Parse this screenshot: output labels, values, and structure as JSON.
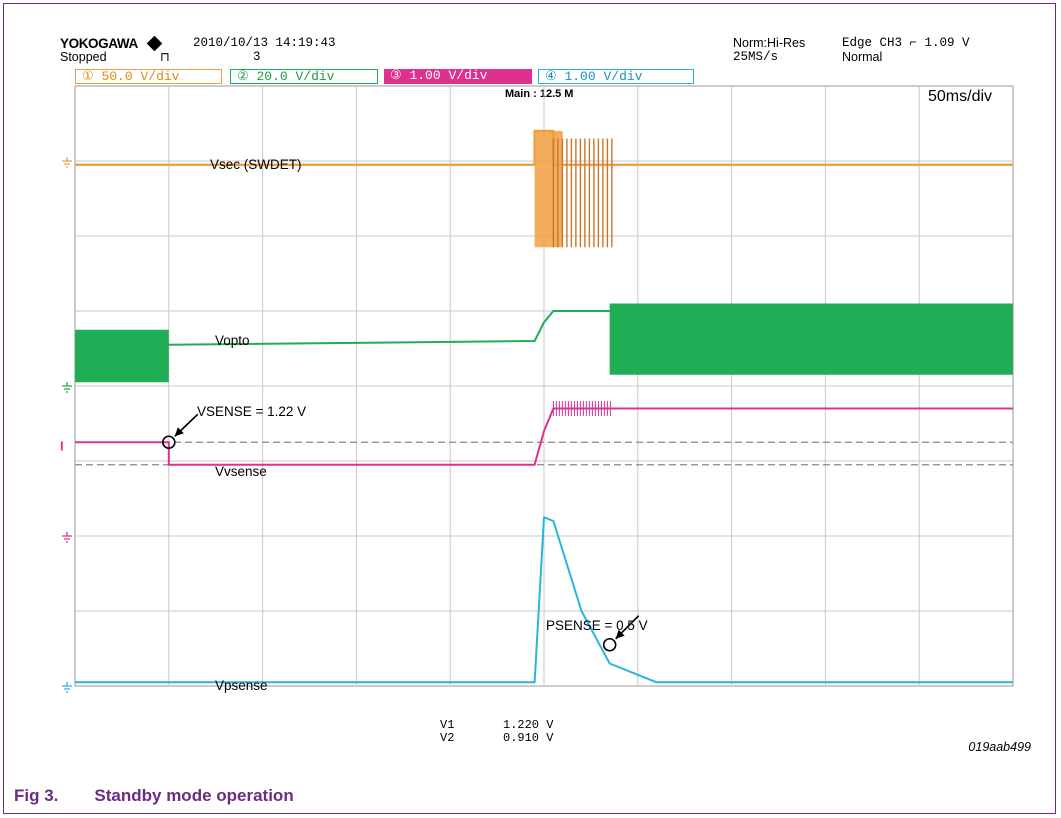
{
  "header": {
    "brand": "YOKOGAWA",
    "status": "Stopped",
    "datetime": "2010/10/13 14:19:43",
    "acq_count": "3",
    "acq_mode": "Norm:Hi-Res",
    "sample_rate": "25MS/s",
    "trigger": "Edge CH3 ⌐ 1.09 V",
    "trigger_mode": "Normal",
    "record_length": "Main : 12.5 M",
    "timebase": "50ms/div"
  },
  "channels": [
    {
      "label": "① 50.0 V/div",
      "color": "#f0a040",
      "text_color": "#e08a1a"
    },
    {
      "label": "② 20.0 V/div",
      "color": "#1fae55",
      "text_color": "#1a9a48"
    },
    {
      "label": "③ 1.00 V/div",
      "color": "#e0308f",
      "text_color": "#ffffff"
    },
    {
      "label": "④ 1.00 V/div",
      "color": "#2bb3e0",
      "text_color": "#1a8fc0"
    }
  ],
  "labels": {
    "vsec": "Vsec (SWDET)",
    "vopto": "Vopto",
    "vvsense": "Vvsense",
    "vpsense": "Vpsense"
  },
  "annotations": {
    "vsense": "VSENSE = 1.22 V",
    "psense": "PSENSE = 0.5 V"
  },
  "cursors": {
    "v1_label": "V1",
    "v1_value": "1.220 V",
    "v2_label": "V2",
    "v2_value": "0.910 V"
  },
  "figure_id": "019aab499",
  "caption": {
    "number": "Fig 3.",
    "title": "Standby mode operation"
  },
  "chart_data": {
    "type": "line",
    "x_unit": "ms",
    "x_range": [
      -250,
      250
    ],
    "y_unit": "div",
    "y_range": [
      -4,
      4
    ],
    "grid": true,
    "series": [
      {
        "name": "Vsec (SWDET)",
        "color": "#f0a040",
        "points": [
          [
            -250,
            2.95
          ],
          [
            -5,
            2.95
          ],
          [
            -5,
            3.4
          ],
          [
            5,
            3.4
          ],
          [
            5,
            2.95
          ],
          [
            250,
            2.95
          ]
        ]
      },
      {
        "name": "Vopto",
        "color": "#1fae55",
        "points": [
          [
            -250,
            0.55
          ],
          [
            -200,
            0.55
          ],
          [
            -200,
            0.55
          ],
          [
            -5,
            0.6
          ],
          [
            0,
            0.85
          ],
          [
            5,
            1.0
          ],
          [
            35,
            1.0
          ],
          [
            250,
            1.0
          ]
        ]
      },
      {
        "name": "Vvsense",
        "color": "#e0308f",
        "points": [
          [
            -250,
            -0.75
          ],
          [
            -200,
            -0.75
          ],
          [
            -200,
            -1.05
          ],
          [
            -5,
            -1.05
          ],
          [
            0,
            -0.6
          ],
          [
            5,
            -0.3
          ],
          [
            35,
            -0.3
          ],
          [
            250,
            -0.3
          ]
        ]
      },
      {
        "name": "Vpsense",
        "color": "#2bb3e0",
        "points": [
          [
            -250,
            -3.95
          ],
          [
            -5,
            -3.95
          ],
          [
            0,
            -1.75
          ],
          [
            5,
            -1.8
          ],
          [
            20,
            -3.0
          ],
          [
            35,
            -3.7
          ],
          [
            60,
            -3.95
          ],
          [
            250,
            -3.95
          ]
        ]
      }
    ]
  }
}
